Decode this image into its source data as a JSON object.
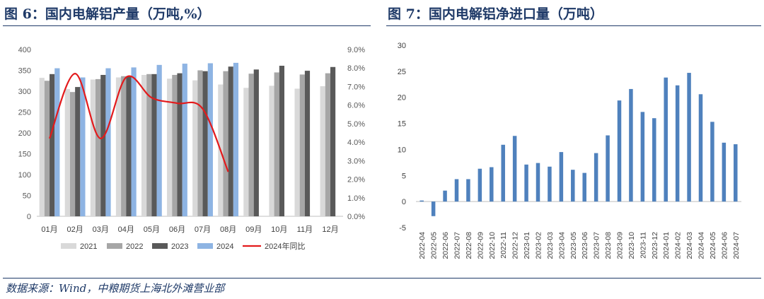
{
  "titles": {
    "fig6": "图 6：国内电解铝产量（万吨,%）",
    "fig7": "图 7：国内电解铝净进口量（万吨）"
  },
  "source": "数据来源：Wind，中粮期货上海北外滩营业部",
  "colors": {
    "title": "#1f3a68",
    "s2021": "#d9d9d9",
    "s2022": "#a6a6a6",
    "s2023": "#595959",
    "s2024": "#8eb4e3",
    "yoy": "#e31a1c",
    "bar7": "#4f81bd"
  },
  "chart_data": [
    {
      "type": "bar",
      "categories": [
        "01月",
        "02月",
        "03月",
        "04月",
        "05月",
        "06月",
        "07月",
        "08月",
        "09月",
        "10月",
        "11月",
        "12月"
      ],
      "series": [
        {
          "name": "2021",
          "values": [
            332,
            305,
            328,
            333,
            339,
            330,
            326,
            316,
            308,
            313,
            306,
            312
          ]
        },
        {
          "name": "2022",
          "values": [
            325,
            298,
            329,
            336,
            341,
            339,
            350,
            348,
            342,
            345,
            340,
            343
          ]
        },
        {
          "name": "2023",
          "values": [
            341,
            310,
            339,
            336,
            341,
            343,
            348,
            359,
            352,
            361,
            349,
            358
          ]
        },
        {
          "name": "2024",
          "values": [
            355,
            333,
            355,
            357,
            363,
            366,
            367,
            368,
            null,
            null,
            null,
            null
          ]
        }
      ],
      "line_series": {
        "name": "2024年同比",
        "axis": "right",
        "values": [
          4.2,
          7.7,
          4.2,
          7.5,
          6.4,
          6.1,
          5.8,
          2.4,
          null,
          null,
          null,
          null
        ]
      },
      "ylim": [
        0,
        400
      ],
      "yticks": [
        "0",
        "50",
        "100",
        "150",
        "200",
        "250",
        "300",
        "350",
        "400"
      ],
      "y2lim": [
        0,
        9
      ],
      "y2ticks": [
        "0.0%",
        "1.0%",
        "2.0%",
        "3.0%",
        "4.0%",
        "5.0%",
        "6.0%",
        "7.0%",
        "8.0%",
        "9.0%"
      ],
      "legend": [
        "2021",
        "2022",
        "2023",
        "2024",
        "2024年同比"
      ],
      "legend_position": "bottom",
      "grid": false
    },
    {
      "type": "bar",
      "categories": [
        "2022-04",
        "2022-05",
        "2022-06",
        "2022-07",
        "2022-08",
        "2022-09",
        "2022-10",
        "2022-11",
        "2022-12",
        "2023-01",
        "2023-02",
        "2023-03",
        "2023-04",
        "2023-05",
        "2023-06",
        "2023-07",
        "2023-08",
        "2023-09",
        "2023-10",
        "2023-11",
        "2023-12",
        "2024-01",
        "2024-02",
        "2024-03",
        "2024-04",
        "2024-05",
        "2024-06",
        "2024-07"
      ],
      "values": [
        0.2,
        -2.8,
        2.1,
        4.3,
        4.3,
        6.3,
        6.6,
        10.9,
        12.6,
        7.1,
        7.4,
        6.7,
        9.5,
        6.1,
        5.5,
        9.3,
        12.7,
        19.4,
        21.6,
        17.2,
        16.0,
        23.8,
        22.3,
        24.7,
        20.6,
        15.3,
        11.3,
        11.0
      ],
      "ylim": [
        -5,
        30
      ],
      "yticks": [
        "-5",
        "0",
        "5",
        "10",
        "15",
        "20",
        "25",
        "30"
      ],
      "grid": false
    }
  ]
}
